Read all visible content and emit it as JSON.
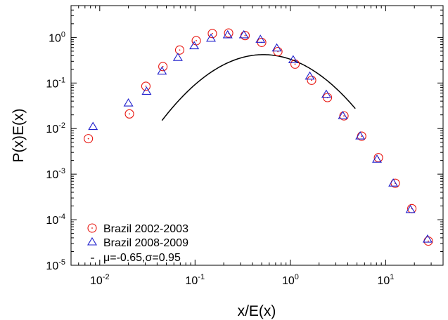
{
  "chart_data": {
    "type": "scatter",
    "title": "",
    "xlabel": "x/E(x)",
    "ylabel": "P(x)E(x)",
    "xscale": "log",
    "yscale": "log",
    "xlim": [
      0.005,
      40
    ],
    "ylim": [
      1e-05,
      5
    ],
    "x_ticks": [
      {
        "value": 0.01,
        "base": "10",
        "exp": "-2"
      },
      {
        "value": 0.1,
        "base": "10",
        "exp": "-1"
      },
      {
        "value": 1,
        "base": "10",
        "exp": "0"
      },
      {
        "value": 10,
        "base": "10",
        "exp": "1"
      }
    ],
    "y_ticks": [
      {
        "value": 1e-05,
        "base": "10",
        "exp": "-5"
      },
      {
        "value": 0.0001,
        "base": "10",
        "exp": "-4"
      },
      {
        "value": 0.001,
        "base": "10",
        "exp": "-3"
      },
      {
        "value": 0.01,
        "base": "10",
        "exp": "-2"
      },
      {
        "value": 0.1,
        "base": "10",
        "exp": "-1"
      },
      {
        "value": 1,
        "base": "10",
        "exp": "0"
      }
    ],
    "grid": false,
    "legend_position": "bottom-left",
    "series": [
      {
        "name": "Brazil 2002-2003",
        "marker": "circle",
        "color": "#e8150f",
        "points": [
          [
            0.0076,
            0.006
          ],
          [
            0.0205,
            0.021
          ],
          [
            0.0305,
            0.085
          ],
          [
            0.046,
            0.23
          ],
          [
            0.069,
            0.53
          ],
          [
            0.103,
            0.85
          ],
          [
            0.152,
            1.22
          ],
          [
            0.225,
            1.25
          ],
          [
            0.335,
            1.1
          ],
          [
            0.5,
            0.78
          ],
          [
            0.74,
            0.49
          ],
          [
            1.12,
            0.26
          ],
          [
            1.67,
            0.115
          ],
          [
            2.45,
            0.048
          ],
          [
            3.65,
            0.019
          ],
          [
            5.6,
            0.0068
          ],
          [
            8.4,
            0.0023
          ],
          [
            12.6,
            0.00063
          ],
          [
            18.8,
            0.000175
          ],
          [
            28.0,
            3.4e-05
          ]
        ]
      },
      {
        "name": "Brazil 2008-2009",
        "marker": "triangle",
        "color": "#1f1fcc",
        "points": [
          [
            0.0085,
            0.011
          ],
          [
            0.02,
            0.036
          ],
          [
            0.031,
            0.065
          ],
          [
            0.045,
            0.18
          ],
          [
            0.066,
            0.36
          ],
          [
            0.098,
            0.65
          ],
          [
            0.147,
            0.95
          ],
          [
            0.22,
            1.13
          ],
          [
            0.325,
            1.13
          ],
          [
            0.485,
            0.9
          ],
          [
            0.72,
            0.58
          ],
          [
            1.07,
            0.32
          ],
          [
            1.6,
            0.14
          ],
          [
            2.38,
            0.056
          ],
          [
            3.55,
            0.019
          ],
          [
            5.4,
            0.0068
          ],
          [
            8.1,
            0.0021
          ],
          [
            12.0,
            0.00063
          ],
          [
            18.2,
            0.000165
          ],
          [
            27.5,
            3.7e-05
          ]
        ]
      },
      {
        "name": "μ=-0.65,σ=0.95",
        "type": "line",
        "color": "#000000",
        "mu": -0.65,
        "sigma": 0.95,
        "x_range": [
          0.045,
          4.8
        ]
      }
    ]
  }
}
